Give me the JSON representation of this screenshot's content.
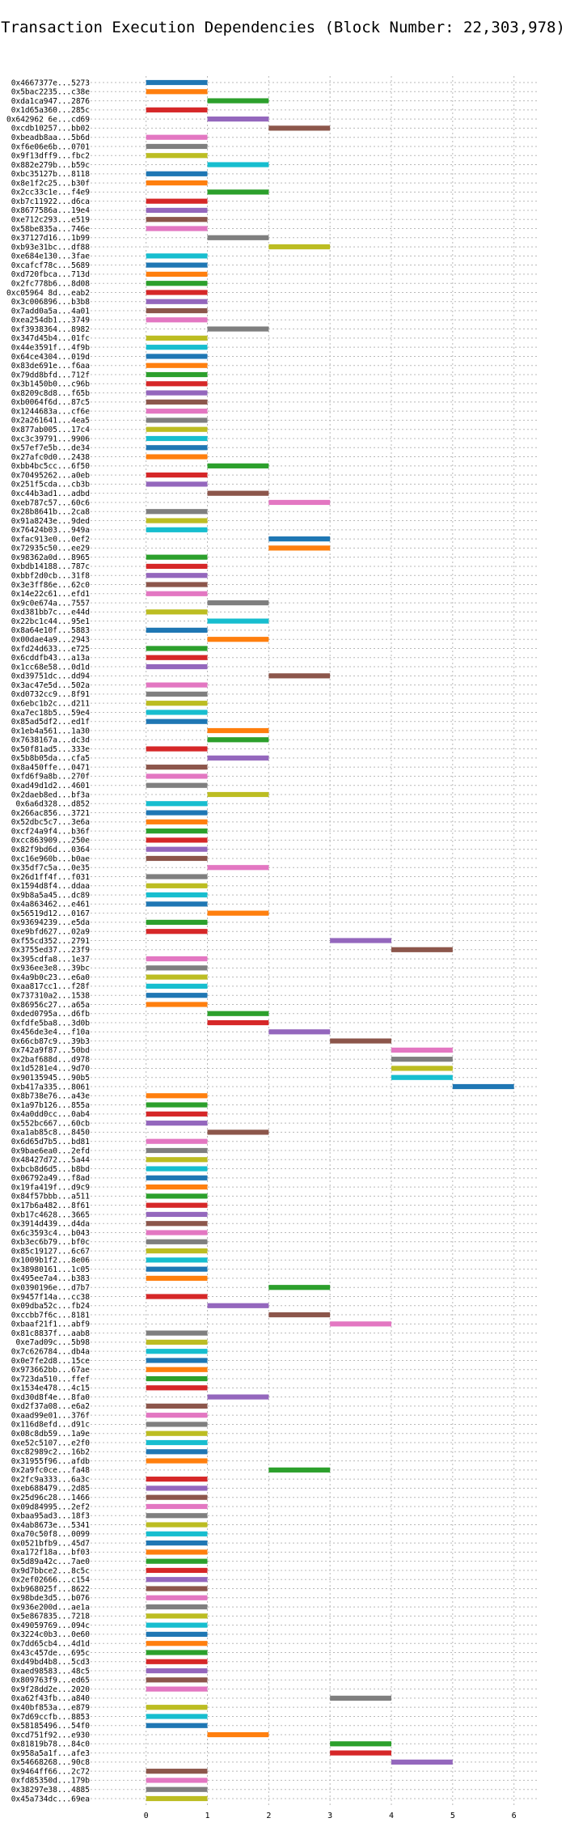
{
  "chart_data": {
    "type": "gantt",
    "title": "Transaction Execution Dependencies (Block Number: 22,303,978)",
    "xlabel": "",
    "ylabel": "",
    "xlim": [
      -0.8,
      6.4
    ],
    "xticks": [
      0,
      1,
      2,
      3,
      4,
      5,
      6
    ],
    "grid": true,
    "palette": [
      "#1f77b4",
      "#ff7f0e",
      "#2ca02c",
      "#d62728",
      "#9467bd",
      "#8c564b",
      "#e377c2",
      "#7f7f7f",
      "#bcbd22",
      "#17becf"
    ],
    "transactions": [
      {
        "label": "0x4667377e...5273",
        "start": 0
      },
      {
        "label": "0x5bac2235...c38e",
        "start": 0
      },
      {
        "label": "0xda1ca947...2876",
        "start": 1
      },
      {
        "label": "0x1d65a360...285c",
        "start": 0
      },
      {
        "label": "0x642962 6e...cd69",
        "start": 1
      },
      {
        "label": "0xcdb10257...bb02",
        "start": 2
      },
      {
        "label": "0xbeadb8aa...5b6d",
        "start": 0
      },
      {
        "label": "0xf6e06e6b...0701",
        "start": 0
      },
      {
        "label": "0x9f13dff9...fbc2",
        "start": 0
      },
      {
        "label": "0x882e279b...b59c",
        "start": 1
      },
      {
        "label": "0xbc35127b...8118",
        "start": 0
      },
      {
        "label": "0x8e1f2c25...b30f",
        "start": 0
      },
      {
        "label": "0x2cc33c1e...f4e9",
        "start": 1
      },
      {
        "label": "0xb7c11922...d6ca",
        "start": 0
      },
      {
        "label": "0x8677586a...19e4",
        "start": 0
      },
      {
        "label": "0xe712c293...e519",
        "start": 0
      },
      {
        "label": "0x58be835a...746e",
        "start": 0
      },
      {
        "label": "0x37127d16...1b99",
        "start": 1
      },
      {
        "label": "0xb93e31bc...df88",
        "start": 2
      },
      {
        "label": "0xe684e130...3fae",
        "start": 0
      },
      {
        "label": "0xcafcf78c...5689",
        "start": 0
      },
      {
        "label": "0xd720fbca...713d",
        "start": 0
      },
      {
        "label": "0x2fc778b6...8d08",
        "start": 0
      },
      {
        "label": "0xc05964 8d...eab2",
        "start": 0
      },
      {
        "label": "0x3c006896...b3b8",
        "start": 0
      },
      {
        "label": "0x7add0a5a...4a01",
        "start": 0
      },
      {
        "label": "0xea254db1...3749",
        "start": 0
      },
      {
        "label": "0xf3938364...8982",
        "start": 1
      },
      {
        "label": "0x347d45b4...01fc",
        "start": 0
      },
      {
        "label": "0x44e3591f...4f9b",
        "start": 0
      },
      {
        "label": "0x64ce4304...019d",
        "start": 0
      },
      {
        "label": "0x83de691e...f6aa",
        "start": 0
      },
      {
        "label": "0x79dd8bfd...712f",
        "start": 0
      },
      {
        "label": "0x3b1450b0...c96b",
        "start": 0
      },
      {
        "label": "0x8209c8d8...f65b",
        "start": 0
      },
      {
        "label": "0xb0064f6d...87c5",
        "start": 0
      },
      {
        "label": "0x1244683a...cf6e",
        "start": 0
      },
      {
        "label": "0x2a261641...4ea5",
        "start": 0
      },
      {
        "label": "0x877ab005...17c4",
        "start": 0
      },
      {
        "label": "0xc3c39791...9906",
        "start": 0
      },
      {
        "label": "0x57ef7e5b...de34",
        "start": 0
      },
      {
        "label": "0x27afc0d0...2438",
        "start": 0
      },
      {
        "label": "0xbb4bc5cc...6f50",
        "start": 1
      },
      {
        "label": "0x70495262...a0eb",
        "start": 0
      },
      {
        "label": "0x251f5cda...cb3b",
        "start": 0
      },
      {
        "label": "0xc44b3ad1...adbd",
        "start": 1
      },
      {
        "label": "0xeb787c57...60c6",
        "start": 2
      },
      {
        "label": "0x28b8641b...2ca8",
        "start": 0
      },
      {
        "label": "0x91a8243e...9ded",
        "start": 0
      },
      {
        "label": "0x76424b03...949a",
        "start": 0
      },
      {
        "label": "0xfac913e0...0ef2",
        "start": 2
      },
      {
        "label": "0x72935c50...ee29",
        "start": 2
      },
      {
        "label": "0x98362a0d...8965",
        "start": 0
      },
      {
        "label": "0xbdb14188...787c",
        "start": 0
      },
      {
        "label": "0xbbf2d0cb...31f8",
        "start": 0
      },
      {
        "label": "0x3e3ff86e...62c0",
        "start": 0
      },
      {
        "label": "0x14e22c61...efd1",
        "start": 0
      },
      {
        "label": "0x9c0e674a...7557",
        "start": 1
      },
      {
        "label": "0xd381bb7c...e44d",
        "start": 0
      },
      {
        "label": "0x22bc1c44...95e1",
        "start": 1
      },
      {
        "label": "0x8a64e10f...5883",
        "start": 0
      },
      {
        "label": "0x00dae4a9...2943",
        "start": 1
      },
      {
        "label": "0xfd24d633...e725",
        "start": 0
      },
      {
        "label": "0x6cddfb43...a13a",
        "start": 0
      },
      {
        "label": "0x1cc68e58...0d1d",
        "start": 0
      },
      {
        "label": "0xd39751dc...dd94",
        "start": 2
      },
      {
        "label": "0x3ac47e5d...502a",
        "start": 0
      },
      {
        "label": "0xd0732cc9...8f91",
        "start": 0
      },
      {
        "label": "0x6ebc1b2c...d211",
        "start": 0
      },
      {
        "label": "0xa7ec18b5...59e4",
        "start": 0
      },
      {
        "label": "0x85ad5df2...ed1f",
        "start": 0
      },
      {
        "label": "0x1eb4a561...1a30",
        "start": 1
      },
      {
        "label": "0x7638167a...dc3d",
        "start": 1
      },
      {
        "label": "0x50f81ad5...333e",
        "start": 0
      },
      {
        "label": "0x5b8b05da...cfa5",
        "start": 1
      },
      {
        "label": "0x8a450ffe...0471",
        "start": 0
      },
      {
        "label": "0xfd6f9a8b...270f",
        "start": 0
      },
      {
        "label": "0xad49d1d2...4601",
        "start": 0
      },
      {
        "label": "0x2daeb8ed...bf3a",
        "start": 1
      },
      {
        "label": "0x6a6d328...d852",
        "start": 0
      },
      {
        "label": "0x266ac856...3721",
        "start": 0
      },
      {
        "label": "0x52dbc5c7...3e6a",
        "start": 0
      },
      {
        "label": "0xcf24a9f4...b36f",
        "start": 0
      },
      {
        "label": "0xcc863909...250e",
        "start": 0
      },
      {
        "label": "0x82f9bd6d...0364",
        "start": 0
      },
      {
        "label": "0xc16e960b...b0ae",
        "start": 0
      },
      {
        "label": "0x35df7c5a...0e35",
        "start": 1
      },
      {
        "label": "0x26d1ff4f...f031",
        "start": 0
      },
      {
        "label": "0x1594d8f4...ddaa",
        "start": 0
      },
      {
        "label": "0x9b8a5a45...dc89",
        "start": 0
      },
      {
        "label": "0x4a863462...e461",
        "start": 0
      },
      {
        "label": "0x56519d12...0167",
        "start": 1
      },
      {
        "label": "0x93694239...e5da",
        "start": 0
      },
      {
        "label": "0xe9bfd627...02a9",
        "start": 0
      },
      {
        "label": "0xf55cd352...2791",
        "start": 3
      },
      {
        "label": "0x3755ed37...23f9",
        "start": 4
      },
      {
        "label": "0x395cdfa8...1e37",
        "start": 0
      },
      {
        "label": "0x936ee3e8...39bc",
        "start": 0
      },
      {
        "label": "0x4a9b0c23...e6a0",
        "start": 0
      },
      {
        "label": "0xaa817cc1...f28f",
        "start": 0
      },
      {
        "label": "0x737310a2...1538",
        "start": 0
      },
      {
        "label": "0x86956c27...a65a",
        "start": 0
      },
      {
        "label": "0xded0795a...d6fb",
        "start": 1
      },
      {
        "label": "0xfdfe5ba8...3d0b",
        "start": 1
      },
      {
        "label": "0x456de3e4...f10a",
        "start": 2
      },
      {
        "label": "0x66cb87c9...39b3",
        "start": 3
      },
      {
        "label": "0x742a9f87...50bd",
        "start": 4
      },
      {
        "label": "0x2baf688d...d978",
        "start": 4
      },
      {
        "label": "0x1d5281e4...9d70",
        "start": 4
      },
      {
        "label": "0x90135945...90b5",
        "start": 4
      },
      {
        "label": "0xb417a335...8061",
        "start": 5
      },
      {
        "label": "0x8b738e76...a43e",
        "start": 0
      },
      {
        "label": "0x1a97b126...855a",
        "start": 0
      },
      {
        "label": "0x4a0dd0cc...0ab4",
        "start": 0
      },
      {
        "label": "0x552bc667...60cb",
        "start": 0
      },
      {
        "label": "0xa1ab85c8...8450",
        "start": 1
      },
      {
        "label": "0x6d65d7b5...bd81",
        "start": 0
      },
      {
        "label": "0x9bae6ea0...2efd",
        "start": 0
      },
      {
        "label": "0x48427d72...5a44",
        "start": 0
      },
      {
        "label": "0xbcb8d6d5...b8bd",
        "start": 0
      },
      {
        "label": "0x06792a49...f8ad",
        "start": 0
      },
      {
        "label": "0x19fa419f...d9c9",
        "start": 0
      },
      {
        "label": "0x84f57bbb...a511",
        "start": 0
      },
      {
        "label": "0x17b6a482...8f61",
        "start": 0
      },
      {
        "label": "0xb17c4628...3665",
        "start": 0
      },
      {
        "label": "0x3914d439...d4da",
        "start": 0
      },
      {
        "label": "0x6c3593c4...b043",
        "start": 0
      },
      {
        "label": "0xb3ec6b79...bf0c",
        "start": 0
      },
      {
        "label": "0x85c19127...6c67",
        "start": 0
      },
      {
        "label": "0x1009b1f2...8e06",
        "start": 0
      },
      {
        "label": "0x38980161...1c05",
        "start": 0
      },
      {
        "label": "0x495ee7a4...b383",
        "start": 0
      },
      {
        "label": "0x0390196e...d7b7",
        "start": 2
      },
      {
        "label": "0x9457f14a...cc38",
        "start": 0
      },
      {
        "label": "0x09dba52c...fb24",
        "start": 1
      },
      {
        "label": "0xccbb7f6c...8181",
        "start": 2
      },
      {
        "label": "0xbaaf21f1...abf9",
        "start": 3
      },
      {
        "label": "0x81c8837f...aab8",
        "start": 0
      },
      {
        "label": "0xe7ad09c...5b98",
        "start": 0
      },
      {
        "label": "0x7c626784...db4a",
        "start": 0
      },
      {
        "label": "0x0e7fe2d8...15ce",
        "start": 0
      },
      {
        "label": "0x973662bb...67ae",
        "start": 0
      },
      {
        "label": "0x723da510...ffef",
        "start": 0
      },
      {
        "label": "0x1534e478...4c15",
        "start": 0
      },
      {
        "label": "0xd30d8f4e...8fa0",
        "start": 1
      },
      {
        "label": "0xd2f37a08...e6a2",
        "start": 0
      },
      {
        "label": "0xaad99e01...376f",
        "start": 0
      },
      {
        "label": "0x116d8efd...d91c",
        "start": 0
      },
      {
        "label": "0x08c8db59...1a9e",
        "start": 0
      },
      {
        "label": "0xe52c5107...e2f0",
        "start": 0
      },
      {
        "label": "0xc82989c2...16b2",
        "start": 0
      },
      {
        "label": "0x31955f96...afdb",
        "start": 0
      },
      {
        "label": "0x2a9fc0ce...fa48",
        "start": 2
      },
      {
        "label": "0x2fc9a333...6a3c",
        "start": 0
      },
      {
        "label": "0xeb688479...2d85",
        "start": 0
      },
      {
        "label": "0x25d96c28...1466",
        "start": 0
      },
      {
        "label": "0x09d84995...2ef2",
        "start": 0
      },
      {
        "label": "0xbaa95ad3...18f3",
        "start": 0
      },
      {
        "label": "0x4ab8673e...5341",
        "start": 0
      },
      {
        "label": "0xa70c50f8...0099",
        "start": 0
      },
      {
        "label": "0x0521bfb9...45d7",
        "start": 0
      },
      {
        "label": "0xa172f18a...bf03",
        "start": 0
      },
      {
        "label": "0x5d89a42c...7ae0",
        "start": 0
      },
      {
        "label": "0x9d7bbce2...8c5c",
        "start": 0
      },
      {
        "label": "0x2ef02666...c154",
        "start": 0
      },
      {
        "label": "0xb968025f...8622",
        "start": 0
      },
      {
        "label": "0x98bde3d5...b076",
        "start": 0
      },
      {
        "label": "0x936e200d...ae1a",
        "start": 0
      },
      {
        "label": "0x5e867835...7218",
        "start": 0
      },
      {
        "label": "0x49059769...094c",
        "start": 0
      },
      {
        "label": "0x3224c0b3...0e60",
        "start": 0
      },
      {
        "label": "0x7dd65cb4...4d1d",
        "start": 0
      },
      {
        "label": "0x43c457de...695c",
        "start": 0
      },
      {
        "label": "0xd49bd4b8...5cd3",
        "start": 0
      },
      {
        "label": "0xaed98583...48c5",
        "start": 0
      },
      {
        "label": "0x809763f9...ed65",
        "start": 0
      },
      {
        "label": "0x9f28dd2e...2020",
        "start": 0
      },
      {
        "label": "0xa62f43fb...a840",
        "start": 3
      },
      {
        "label": "0x40bf853a...e879",
        "start": 0
      },
      {
        "label": "0x7d69ccfb...8853",
        "start": 0
      },
      {
        "label": "0x58185496...54f0",
        "start": 0
      },
      {
        "label": "0xcd751f92...e930",
        "start": 1
      },
      {
        "label": "0x81819b78...84c0",
        "start": 3
      },
      {
        "label": "0x958a5a1f...afe3",
        "start": 3
      },
      {
        "label": "0x54668268...90c8",
        "start": 4
      },
      {
        "label": "0x9464ff66...2c72",
        "start": 0
      },
      {
        "label": "0xfd85350d...179b",
        "start": 0
      },
      {
        "label": "0x38297e38...4885",
        "start": 0
      },
      {
        "label": "0x45a734dc...69ea",
        "start": 0
      }
    ]
  }
}
